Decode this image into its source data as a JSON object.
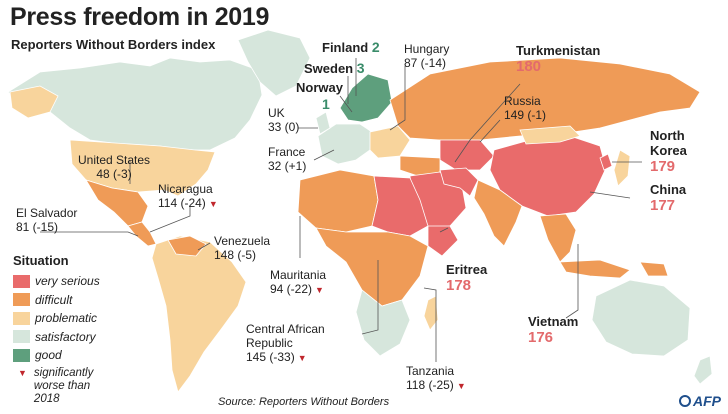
{
  "header": {
    "title": "Press freedom in 2019",
    "subtitle": "Reporters Without Borders index"
  },
  "colors": {
    "very_serious": "#e96b6b",
    "difficult": "#ef9b57",
    "problematic": "#f8d49c",
    "satisfactory": "#d6e6dc",
    "good": "#5e9f7d",
    "worse_marker": "#c0272d",
    "water": "#ffffff"
  },
  "legend": {
    "title": "Situation",
    "items": [
      {
        "label": "very serious",
        "color": "#e96b6b"
      },
      {
        "label": "difficult",
        "color": "#ef9b57"
      },
      {
        "label": "problematic",
        "color": "#f8d49c"
      },
      {
        "label": "satisfactory",
        "color": "#d6e6dc"
      },
      {
        "label": "good",
        "color": "#5e9f7d"
      }
    ],
    "worse_label": "significantly worse than 2018"
  },
  "countries": {
    "finland": {
      "name": "Finland",
      "rank": "2"
    },
    "sweden": {
      "name": "Sweden",
      "rank": "3"
    },
    "norway": {
      "name": "Norway",
      "rank": "1"
    },
    "hungary": {
      "name": "Hungary",
      "stat": "87 (-14)"
    },
    "turkmenistan": {
      "name": "Turkmenistan",
      "stat": "180"
    },
    "russia": {
      "name": "Russia",
      "stat": "149 (-1)"
    },
    "uk": {
      "name": "UK",
      "stat": "33 (0)"
    },
    "france": {
      "name": "France",
      "stat": "32 (+1)"
    },
    "usa": {
      "name": "United States",
      "stat": "48 (-3)"
    },
    "nicaragua": {
      "name": "Nicaragua",
      "stat": "114 (-24)"
    },
    "el_salvador": {
      "name": "El Salvador",
      "stat": "81 (-15)"
    },
    "venezuela": {
      "name": "Venezuela",
      "stat": "148 (-5)"
    },
    "mauritania": {
      "name": "Mauritania",
      "stat": "94 (-22)"
    },
    "car": {
      "name": "Central African Republic",
      "stat": "145 (-33)"
    },
    "tanzania": {
      "name": "Tanzania",
      "stat": "118 (-25)"
    },
    "eritrea": {
      "name": "Eritrea",
      "stat": "178"
    },
    "vietnam": {
      "name": "Vietnam",
      "stat": "176"
    },
    "north_korea": {
      "name": "North Korea",
      "stat": "179"
    },
    "china": {
      "name": "China",
      "stat": "177"
    }
  },
  "footer": {
    "source": "Source: Reporters Without Borders",
    "credit": "AFP"
  }
}
